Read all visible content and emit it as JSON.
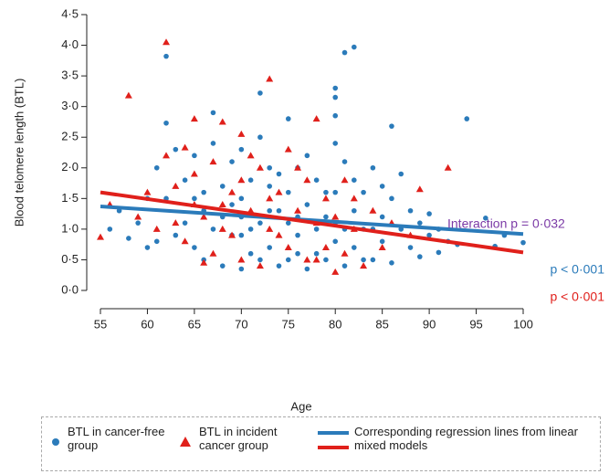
{
  "chart_data": {
    "type": "scatter",
    "xlabel": "Age",
    "ylabel": "Blood telomere length (BTL)",
    "xlim": [
      55,
      100
    ],
    "xticks": [
      55,
      60,
      65,
      70,
      75,
      80,
      85,
      90,
      95,
      100
    ],
    "ylim": [
      0,
      4.5
    ],
    "yticks": [
      {
        "value": 0,
        "label": "0·0"
      },
      {
        "value": 0.5,
        "label": "0·5"
      },
      {
        "value": 1,
        "label": "1·0"
      },
      {
        "value": 1.5,
        "label": "1·5"
      },
      {
        "value": 2,
        "label": "2·0"
      },
      {
        "value": 2.5,
        "label": "2·5"
      },
      {
        "value": 3,
        "label": "3·0"
      },
      {
        "value": 3.5,
        "label": "3·5"
      },
      {
        "value": 4,
        "label": "4·0"
      },
      {
        "value": 4.5,
        "label": "4·5"
      }
    ],
    "series": [
      {
        "name": "BTL in cancer-free group",
        "color": "#2b7bba",
        "marker": "circle",
        "x": [
          62,
          72,
          81,
          82,
          80,
          80,
          94,
          86,
          67,
          62,
          80,
          75,
          80,
          96,
          97,
          100,
          98,
          91,
          93,
          56,
          57,
          59,
          58,
          60,
          60,
          61,
          63,
          64,
          65,
          66,
          66,
          67,
          68,
          68,
          69,
          69,
          70,
          70,
          70,
          71,
          71,
          72,
          72,
          73,
          73,
          74,
          74,
          75,
          75,
          76,
          76,
          77,
          77,
          78,
          78,
          79,
          79,
          80,
          80,
          81,
          81,
          82,
          82,
          83,
          83,
          84,
          84,
          85,
          85,
          86,
          86,
          87,
          87,
          88,
          88,
          89,
          89,
          90,
          90,
          91,
          92,
          64,
          65,
          67,
          69,
          71,
          73,
          76,
          78,
          80,
          82,
          84,
          63,
          66,
          68,
          70,
          72,
          74,
          76,
          79,
          81,
          83,
          85,
          62,
          61,
          65,
          75,
          77,
          70,
          73
        ],
        "values": [
          3.82,
          3.22,
          3.88,
          3.97,
          3.3,
          3.15,
          2.8,
          2.68,
          2.9,
          2.73,
          2.85,
          2.8,
          2.4,
          1.18,
          0.72,
          0.78,
          0.9,
          0.62,
          0.75,
          1.0,
          1.3,
          1.1,
          0.85,
          0.7,
          1.5,
          2.0,
          2.3,
          1.8,
          2.2,
          0.5,
          1.6,
          2.4,
          0.4,
          1.2,
          2.1,
          0.9,
          0.35,
          1.5,
          2.3,
          1.0,
          1.8,
          0.5,
          2.5,
          1.3,
          0.7,
          1.9,
          0.4,
          1.1,
          1.6,
          0.6,
          2.0,
          1.4,
          0.35,
          1.0,
          1.8,
          0.5,
          1.2,
          0.8,
          1.6,
          2.1,
          0.4,
          1.3,
          0.7,
          1.0,
          1.6,
          0.5,
          2.0,
          1.2,
          0.8,
          1.5,
          0.45,
          1.0,
          1.9,
          0.7,
          1.3,
          1.1,
          0.55,
          0.9,
          1.25,
          1.0,
          0.8,
          1.1,
          0.7,
          1.0,
          1.4,
          0.6,
          1.7,
          1.2,
          0.6,
          1.1,
          1.8,
          1.0,
          0.9,
          1.3,
          1.7,
          0.9,
          1.1,
          1.3,
          0.9,
          1.6,
          1.0,
          0.5,
          1.7,
          1.5,
          0.8,
          1.5,
          0.5,
          2.2,
          1.2,
          2.0
        ]
      },
      {
        "name": "BTL in incident cancer group",
        "color": "#e0201b",
        "marker": "triangle",
        "x": [
          62,
          73,
          58,
          78,
          65,
          68,
          70,
          64,
          92,
          89,
          55,
          56,
          59,
          60,
          61,
          62,
          63,
          64,
          65,
          66,
          67,
          67,
          68,
          69,
          70,
          70,
          71,
          72,
          72,
          73,
          74,
          75,
          75,
          76,
          77,
          77,
          78,
          79,
          79,
          80,
          80,
          81,
          81,
          82,
          83,
          84,
          85,
          86,
          88,
          66,
          69,
          71,
          74,
          76,
          78,
          63,
          65,
          68,
          73,
          82
        ],
        "values": [
          4.05,
          3.45,
          3.18,
          2.8,
          2.8,
          2.75,
          2.55,
          2.33,
          2.0,
          1.65,
          0.87,
          1.4,
          1.2,
          1.6,
          1.0,
          2.2,
          1.7,
          0.8,
          1.9,
          1.2,
          0.6,
          2.1,
          1.4,
          0.9,
          1.8,
          0.5,
          1.3,
          2.0,
          0.4,
          1.0,
          1.6,
          0.7,
          2.3,
          1.3,
          0.5,
          1.8,
          1.1,
          0.7,
          1.5,
          0.3,
          1.2,
          0.6,
          1.8,
          1.0,
          0.4,
          1.3,
          0.7,
          1.1,
          0.9,
          0.45,
          1.6,
          2.2,
          0.9,
          2.0,
          0.5,
          1.1,
          1.4,
          1.0,
          1.5,
          1.5
        ]
      }
    ],
    "regression": {
      "name": "Corresponding regression lines from linear mixed models",
      "series": [
        {
          "color": "#2b7bba",
          "x": [
            55,
            100
          ],
          "values": [
            1.37,
            0.92
          ]
        },
        {
          "color": "#e0201b",
          "x": [
            55,
            100
          ],
          "values": [
            1.6,
            0.62
          ]
        }
      ]
    },
    "annotations": [
      {
        "text": "Interaction p = 0·032",
        "color": "#7b3aa6"
      },
      {
        "text": "p < 0·001",
        "color": "#2b7bba"
      },
      {
        "text": "p < 0·001",
        "color": "#e0201b"
      }
    ]
  }
}
